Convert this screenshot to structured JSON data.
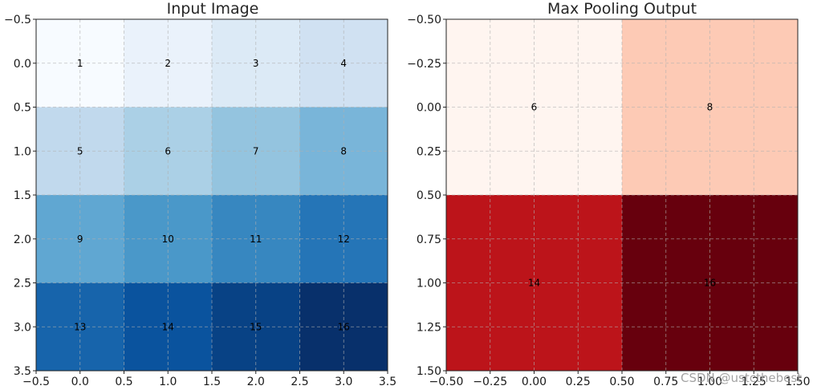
{
  "watermark": "CSDN @ustcthebest",
  "chart_data": [
    {
      "type": "heatmap",
      "title": "Input Image",
      "colormap": "Blues",
      "rows": [
        [
          1,
          2,
          3,
          4
        ],
        [
          5,
          6,
          7,
          8
        ],
        [
          9,
          10,
          11,
          12
        ],
        [
          13,
          14,
          15,
          16
        ]
      ],
      "xlim": [
        -0.5,
        3.5
      ],
      "ylim": [
        3.5,
        -0.5
      ],
      "xticks": [
        "−0.5",
        "0.0",
        "0.5",
        "1.0",
        "1.5",
        "2.0",
        "2.5",
        "3.0",
        "3.5"
      ],
      "yticks": [
        "−0.5",
        "0.0",
        "0.5",
        "1.0",
        "1.5",
        "2.0",
        "2.5",
        "3.0",
        "3.5"
      ],
      "grid": true
    },
    {
      "type": "heatmap",
      "title": "Max Pooling Output",
      "colormap": "Reds",
      "rows": [
        [
          6,
          8
        ],
        [
          14,
          16
        ]
      ],
      "xlim": [
        -0.5,
        1.5
      ],
      "ylim": [
        1.5,
        -0.5
      ],
      "xticks": [
        "−0.50",
        "−0.25",
        "0.00",
        "0.25",
        "0.50",
        "0.75",
        "1.00",
        "1.25",
        "1.50"
      ],
      "yticks": [
        "−0.50",
        "−0.25",
        "0.00",
        "0.25",
        "0.50",
        "0.75",
        "1.00",
        "1.25",
        "1.50"
      ],
      "grid": true
    }
  ]
}
